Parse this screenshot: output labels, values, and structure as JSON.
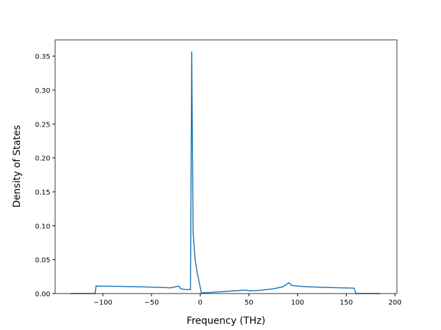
{
  "chart_data": {
    "type": "line",
    "xlabel": "Frequency (THz)",
    "ylabel": "Density of States",
    "x": [
      -133,
      -108,
      -107,
      -80,
      -50,
      -30,
      -22,
      -20,
      -15,
      -11,
      -10,
      -8.7,
      -7.3,
      -5.2,
      -3,
      1.2,
      10,
      25,
      45,
      48,
      50,
      60,
      75,
      85,
      91,
      94,
      100,
      110,
      130,
      158,
      160,
      185
    ],
    "series": [
      {
        "name": "DOS",
        "color": "#1f77b4",
        "values": [
          0,
          0,
          0.011,
          0.0105,
          0.0095,
          0.0085,
          0.011,
          0.007,
          0.006,
          0.006,
          0.006,
          0.357,
          0.09,
          0.05,
          0.03,
          0.001,
          0.0015,
          0.003,
          0.005,
          0.005,
          0.004,
          0.0045,
          0.007,
          0.01,
          0.016,
          0.012,
          0.011,
          0.01,
          0.009,
          0.008,
          0,
          0
        ]
      }
    ],
    "xlim": [
      -149,
      202
    ],
    "ylim": [
      0,
      0.374
    ],
    "xticks": [
      {
        "value": -100,
        "label": "−100"
      },
      {
        "value": -50,
        "label": "−50"
      },
      0,
      50,
      100,
      150,
      200
    ],
    "yticks": [
      {
        "value": 0,
        "label": "0.00"
      },
      {
        "value": 0.05,
        "label": "0.05"
      },
      {
        "value": 0.1,
        "label": "0.10"
      },
      {
        "value": 0.15,
        "label": "0.15"
      },
      {
        "value": 0.2,
        "label": "0.20"
      },
      {
        "value": 0.25,
        "label": "0.25"
      },
      {
        "value": 0.3,
        "label": "0.30"
      },
      {
        "value": 0.35,
        "label": "0.35"
      }
    ]
  }
}
